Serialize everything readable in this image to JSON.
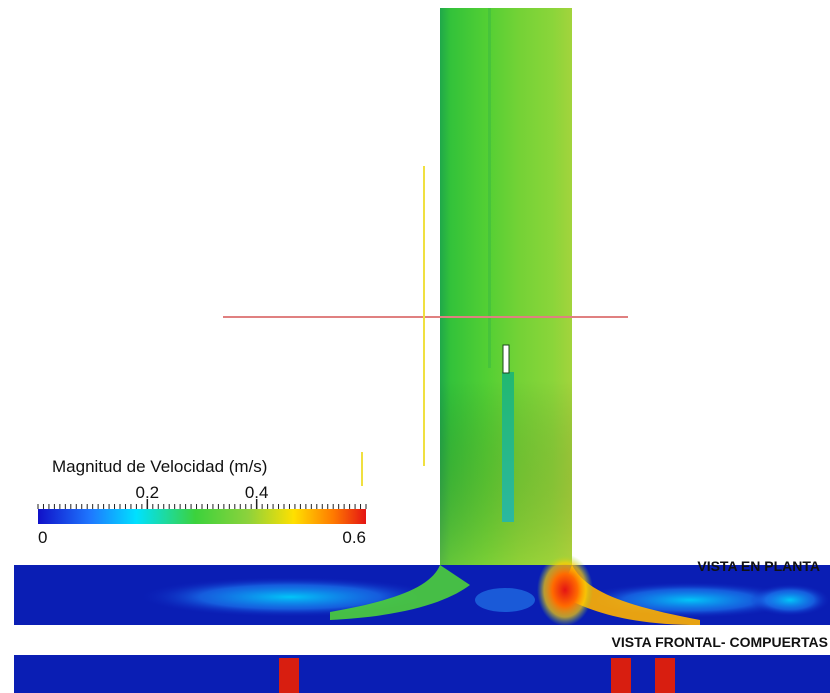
{
  "legend": {
    "title": "Magnitud de Velocidad (m/s)",
    "min_label": "0",
    "max_label": "0.6",
    "tick_labels": [
      "0.2",
      "0.4"
    ],
    "tick_values": [
      0.2,
      0.4
    ],
    "range": [
      0,
      0.6
    ],
    "colormap": [
      "#1010c8",
      "#1e78ff",
      "#00e1ff",
      "#3cd23c",
      "#8cd23c",
      "#ffe000",
      "#ff7a00",
      "#e41414"
    ]
  },
  "views": {
    "plan_label": "VISTA EN PLANTA",
    "front_label": "VISTA FRONTAL- COMPUERTAS"
  },
  "gates": {
    "count": 3,
    "color": "#d81e10"
  },
  "colors": {
    "channel_low": "#0a1eb4",
    "channel_mid": "#3cc83c",
    "reference_line_horizontal": "#e08080",
    "reference_line_vertical": "#f0e040"
  }
}
